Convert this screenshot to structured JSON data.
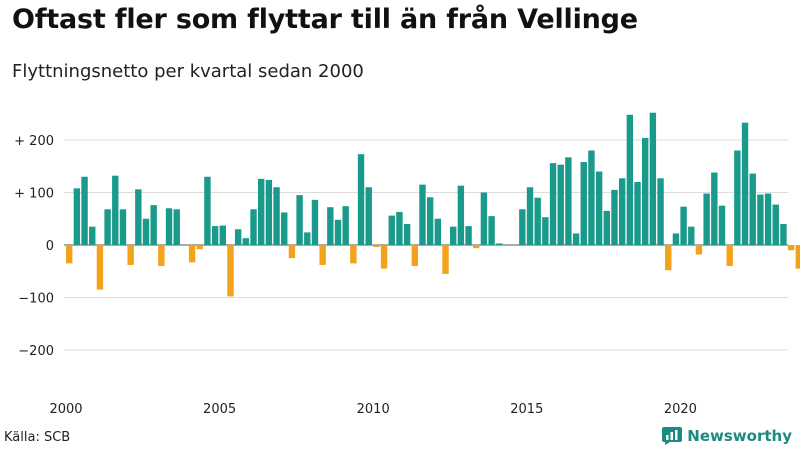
{
  "title": "Oftast fler som flyttar till än från Vellinge",
  "subtitle": "Flyttningsnetto per kvartal sedan 2000",
  "source": "Källa: SCB",
  "brand": "Newsworthy",
  "colors": {
    "positive": "#1a9a8a",
    "negative": "#f5a21b",
    "grid": "#dddddd",
    "zero_line": "#555555",
    "brand": "#1a8a82"
  },
  "chart_data": {
    "type": "bar",
    "x_tick_labels": [
      "2000",
      "2005",
      "2010",
      "2015",
      "2020"
    ],
    "y_tick_labels": [
      "+ 200",
      "+ 100",
      "0",
      "−100",
      "−200"
    ],
    "y_ticks": [
      200,
      100,
      0,
      -100,
      -200
    ],
    "ylim": [
      -260,
      260
    ],
    "start_year": 2000,
    "values": [
      -35,
      108,
      130,
      35,
      -85,
      68,
      132,
      68,
      -38,
      106,
      50,
      76,
      -40,
      70,
      68,
      0,
      -33,
      -8,
      130,
      36,
      37,
      -98,
      30,
      13,
      68,
      126,
      124,
      110,
      62,
      -25,
      95,
      24,
      86,
      -38,
      72,
      48,
      74,
      -35,
      173,
      110,
      -4,
      -45,
      56,
      63,
      40,
      -40,
      115,
      91,
      50,
      -55,
      35,
      113,
      36,
      -6,
      100,
      55,
      3,
      0,
      0,
      68,
      110,
      90,
      53,
      156,
      153,
      167,
      22,
      158,
      180,
      140,
      65,
      105,
      127,
      248,
      120,
      204,
      252,
      127,
      -48,
      22,
      73,
      35,
      -18,
      98,
      138,
      75,
      -40,
      180,
      233,
      136,
      96,
      98,
      77,
      40,
      -10,
      -45
    ]
  }
}
